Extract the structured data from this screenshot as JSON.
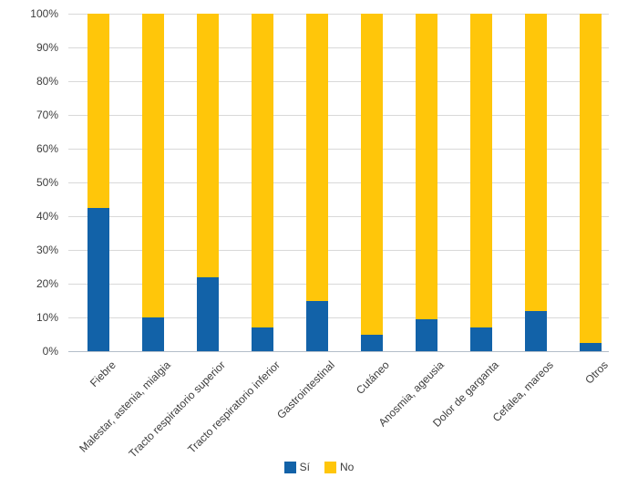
{
  "chart_data": {
    "type": "bar",
    "subtype": "stacked-100-percent-vertical",
    "title": "",
    "xlabel": "",
    "ylabel": "",
    "ylim": [
      0,
      100
    ],
    "grid": true,
    "legend_position": "bottom-center",
    "yticks": [
      "0%",
      "10%",
      "20%",
      "30%",
      "40%",
      "50%",
      "60%",
      "70%",
      "80%",
      "90%",
      "100%"
    ],
    "categories": [
      "Fiebre",
      "Malestar, astenia, mialgia",
      "Tracto respiratorio superior",
      "Tracto respiratorio inferior",
      "Gastrointestinal",
      "Cutáneo",
      "Anosmia, ageusia",
      "Dolor de garganta",
      "Cefalea, mareos",
      "Otros"
    ],
    "series": [
      {
        "name": "Sí",
        "color": "#1262a8",
        "values": [
          42.5,
          10,
          22,
          7,
          15,
          5,
          9.5,
          7,
          12,
          2.5
        ]
      },
      {
        "name": "No",
        "color": "#ffc60a",
        "values": [
          57.5,
          90,
          78,
          93,
          85,
          95,
          90.5,
          93,
          88,
          97.5
        ]
      }
    ]
  },
  "colors": {
    "background": "#ffffff",
    "gridline": "#d9d9d9",
    "axis_line": "#b3bec9",
    "axis_text": "#3d3d3d",
    "series_si": "#1262a8",
    "series_no": "#ffc60a"
  }
}
